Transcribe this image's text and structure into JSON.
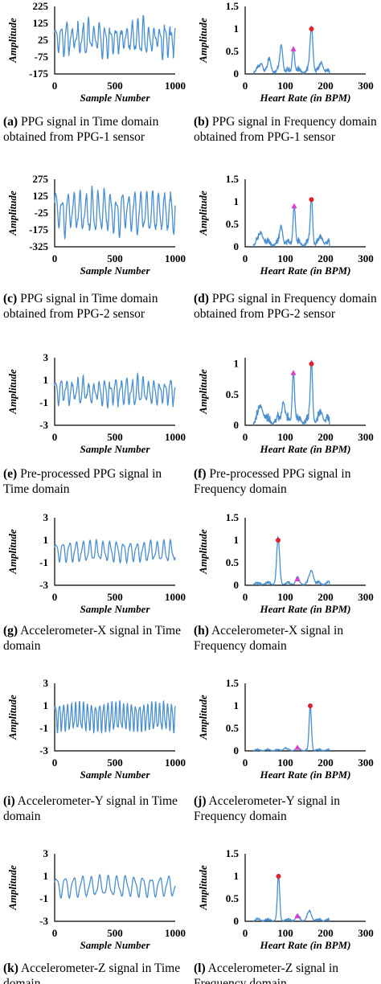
{
  "chart_data": [
    {
      "id": "a",
      "type": "line",
      "letter": "(a)",
      "caption": "PPG signal in Time domain obtained from PPG-1 sensor",
      "xlabel": "Sample Number",
      "ylabel": "Amplitude",
      "xlim": [
        0,
        1000
      ],
      "ylim": [
        -175,
        225
      ],
      "xticks": [
        0,
        500,
        1000
      ],
      "yticks": [
        225,
        125,
        25,
        -75,
        -175
      ],
      "yticklabels": [
        "225",
        "125",
        "25",
        "-75",
        "-175"
      ],
      "signal": {
        "mean": 35,
        "amplitude": 75,
        "periods": 22,
        "irregularity": 0.6,
        "seed": 1
      }
    },
    {
      "id": "b",
      "type": "line",
      "letter": "(b)",
      "caption": "PPG signal in Frequency domain obtained from PPG-1 sensor",
      "xlabel": "Heart Rate (in BPM)",
      "ylabel": "Amplitude",
      "xlim": [
        0,
        300
      ],
      "ylim": [
        0,
        1.5
      ],
      "xticks": [
        0,
        100,
        200,
        300
      ],
      "yticks": [
        1.5,
        1,
        0.5,
        0
      ],
      "yticklabels": [
        "1.5",
        "1",
        "0.5",
        "0"
      ],
      "spectrum": {
        "start": 20,
        "end": 210,
        "peaks": [
          [
            40,
            0.2,
            6
          ],
          [
            60,
            0.25,
            6
          ],
          [
            90,
            0.6,
            5
          ],
          [
            120,
            0.55,
            4
          ],
          [
            165,
            1.0,
            5
          ],
          [
            190,
            0.2,
            6
          ]
        ],
        "noise": 0.12,
        "seed": 2
      },
      "markers": [
        {
          "shape": "circle",
          "x": 165,
          "y": 1.0,
          "color": "#e0212b"
        },
        {
          "shape": "triangle",
          "x": 120,
          "y": 0.55,
          "color": "#e13bcf"
        }
      ]
    },
    {
      "id": "c",
      "type": "line",
      "letter": "(c)",
      "caption": "PPG signal in Time domain obtained from PPG-2 sensor",
      "xlabel": "Sample Number",
      "ylabel": "Amplitude",
      "xlim": [
        0,
        1000
      ],
      "ylim": [
        -325,
        275
      ],
      "xticks": [
        0,
        500,
        1000
      ],
      "yticks": [
        275,
        125,
        -25,
        -175,
        -325
      ],
      "yticklabels": [
        "275",
        "125",
        "-25",
        "-175",
        "-325"
      ],
      "signal": {
        "mean": -20,
        "amplitude": 150,
        "periods": 20,
        "irregularity": 0.35,
        "seed": 3
      }
    },
    {
      "id": "d",
      "type": "line",
      "letter": "(d)",
      "caption": "PPG signal in Frequency domain obtained from PPG-2 sensor",
      "xlabel": "Heart Rate (in BPM)",
      "ylabel": "Amplitude",
      "xlim": [
        0,
        300
      ],
      "ylim": [
        0,
        1.5
      ],
      "xticks": [
        0,
        100,
        200,
        300
      ],
      "yticks": [
        1.5,
        1,
        0.5,
        0
      ],
      "yticklabels": [
        "1.5",
        "1",
        "0.5",
        "0"
      ],
      "spectrum": {
        "start": 20,
        "end": 210,
        "peaks": [
          [
            40,
            0.25,
            8
          ],
          [
            90,
            0.4,
            5
          ],
          [
            122,
            0.9,
            4
          ],
          [
            165,
            1.05,
            4
          ],
          [
            190,
            0.15,
            6
          ]
        ],
        "noise": 0.15,
        "seed": 4
      },
      "markers": [
        {
          "shape": "circle",
          "x": 165,
          "y": 1.05,
          "color": "#e0212b"
        },
        {
          "shape": "triangle",
          "x": 122,
          "y": 0.9,
          "color": "#e13bcf"
        }
      ]
    },
    {
      "id": "e",
      "type": "line",
      "letter": "(e)",
      "caption": "Pre-processed PPG signal in Time domain",
      "xlabel": "Sample Number",
      "ylabel": "Amplitude",
      "xlim": [
        0,
        1000
      ],
      "ylim": [
        -3,
        3
      ],
      "xticks": [
        0,
        500,
        1000
      ],
      "yticks": [
        3,
        1,
        -1,
        -3
      ],
      "yticklabels": [
        "3",
        "1",
        "-1",
        "-3"
      ],
      "signal": {
        "mean": 0,
        "amplitude": 0.9,
        "periods": 22,
        "irregularity": 0.5,
        "seed": 5
      }
    },
    {
      "id": "f",
      "type": "line",
      "letter": "(f)",
      "caption": "Pre-processed PPG signal in Frequency domain",
      "xlabel": "Heart Rate (in BPM)",
      "ylabel": "Amplitude",
      "xlim": [
        0,
        300
      ],
      "ylim": [
        0,
        1.1
      ],
      "xticks": [
        0,
        100,
        200,
        300
      ],
      "yticks": [
        1,
        0.5,
        0
      ],
      "yticklabels": [
        "1",
        "0.5",
        "0"
      ],
      "spectrum": {
        "start": 20,
        "end": 210,
        "peaks": [
          [
            40,
            0.25,
            8
          ],
          [
            95,
            0.35,
            5
          ],
          [
            120,
            0.85,
            4
          ],
          [
            165,
            1.0,
            4
          ],
          [
            190,
            0.15,
            6
          ]
        ],
        "noise": 0.15,
        "seed": 6
      },
      "markers": [
        {
          "shape": "circle",
          "x": 165,
          "y": 1.0,
          "color": "#e0212b"
        },
        {
          "shape": "triangle",
          "x": 120,
          "y": 0.85,
          "color": "#e13bcf"
        }
      ]
    },
    {
      "id": "g",
      "type": "line",
      "letter": "(g)",
      "caption": "Accelerometer-X signal in Time domain",
      "xlabel": "Sample Number",
      "ylabel": "Amplitude",
      "xlim": [
        0,
        1000
      ],
      "ylim": [
        -3,
        3
      ],
      "xticks": [
        0,
        500,
        1000
      ],
      "yticks": [
        3,
        1,
        -1,
        -3
      ],
      "yticklabels": [
        "3",
        "1",
        "-1",
        "-3"
      ],
      "signal": {
        "mean": 0,
        "amplitude": 0.8,
        "periods": 18,
        "irregularity": 0.15,
        "seed": 7
      }
    },
    {
      "id": "h",
      "type": "line",
      "letter": "(h)",
      "caption": "Accelerometer-X signal in Frequency domain",
      "xlabel": "Heart Rate (in BPM)",
      "ylabel": "Amplitude",
      "xlim": [
        0,
        300
      ],
      "ylim": [
        0,
        1.5
      ],
      "xticks": [
        0,
        100,
        200,
        300
      ],
      "yticks": [
        1.5,
        1,
        0.5,
        0
      ],
      "yticklabels": [
        "1.5",
        "1",
        "0.5",
        "0"
      ],
      "spectrum": {
        "start": 20,
        "end": 210,
        "peaks": [
          [
            82,
            1.0,
            5
          ],
          [
            130,
            0.12,
            6
          ],
          [
            165,
            0.3,
            7
          ]
        ],
        "noise": 0.07,
        "seed": 8
      },
      "markers": [
        {
          "shape": "circle",
          "x": 82,
          "y": 1.0,
          "color": "#e0212b"
        },
        {
          "shape": "triangle",
          "x": 130,
          "y": 0.13,
          "color": "#e13bcf"
        }
      ]
    },
    {
      "id": "i",
      "type": "line",
      "letter": "(i)",
      "caption": "Accelerometer-Y signal in Time domain",
      "xlabel": "Sample Number",
      "ylabel": "Amplitude",
      "xlim": [
        0,
        1000
      ],
      "ylim": [
        -3,
        3
      ],
      "xticks": [
        0,
        500,
        1000
      ],
      "yticks": [
        3,
        1,
        -1,
        -3
      ],
      "yticklabels": [
        "3",
        "1",
        "-1",
        "-3"
      ],
      "signal": {
        "mean": 0,
        "amplitude": 1.1,
        "periods": 30,
        "irregularity": 0.1,
        "seed": 9
      }
    },
    {
      "id": "j",
      "type": "line",
      "letter": "(j)",
      "caption": "Accelerometer-Y signal in Frequency domain",
      "xlabel": "Heart Rate (in BPM)",
      "ylabel": "Amplitude",
      "xlim": [
        0,
        300
      ],
      "ylim": [
        0,
        1.5
      ],
      "xticks": [
        0,
        100,
        200,
        300
      ],
      "yticks": [
        1.5,
        1,
        0.5,
        0
      ],
      "yticklabels": [
        "1.5",
        "1",
        "0.5",
        "0"
      ],
      "spectrum": {
        "start": 20,
        "end": 210,
        "peaks": [
          [
            162,
            1.0,
            4
          ],
          [
            130,
            0.06,
            6
          ],
          [
            100,
            0.05,
            6
          ]
        ],
        "noise": 0.03,
        "seed": 10
      },
      "markers": [
        {
          "shape": "circle",
          "x": 162,
          "y": 1.0,
          "color": "#e0212b"
        },
        {
          "shape": "triangle",
          "x": 130,
          "y": 0.07,
          "color": "#e13bcf"
        }
      ]
    },
    {
      "id": "k",
      "type": "line",
      "letter": "(k)",
      "caption": "Accelerometer-Z signal in Time domain",
      "xlabel": "Sample Number",
      "ylabel": "Amplitude",
      "xlim": [
        0,
        1000
      ],
      "ylim": [
        -3,
        3
      ],
      "xticks": [
        0,
        500,
        1000
      ],
      "yticks": [
        3,
        1,
        -1,
        -3
      ],
      "yticklabels": [
        "3",
        "1",
        "-1",
        "-3"
      ],
      "signal": {
        "mean": 0.1,
        "amplitude": 0.8,
        "periods": 14,
        "irregularity": 0.1,
        "seed": 11
      }
    },
    {
      "id": "l",
      "type": "line",
      "letter": "(l)",
      "caption": "Accelerometer-Z signal in Frequency domain",
      "xlabel": "Heart Rate (in BPM)",
      "ylabel": "Amplitude",
      "xlim": [
        0,
        300
      ],
      "ylim": [
        0,
        1.5
      ],
      "xticks": [
        0,
        100,
        200,
        300
      ],
      "yticks": [
        1.5,
        1,
        0.5,
        0
      ],
      "yticklabels": [
        "1.5",
        "1",
        "0.5",
        "0"
      ],
      "spectrum": {
        "start": 20,
        "end": 210,
        "peaks": [
          [
            83,
            1.0,
            4
          ],
          [
            130,
            0.1,
            6
          ],
          [
            160,
            0.2,
            7
          ]
        ],
        "noise": 0.05,
        "seed": 12
      },
      "markers": [
        {
          "shape": "circle",
          "x": 83,
          "y": 1.0,
          "color": "#e0212b"
        },
        {
          "shape": "triangle",
          "x": 130,
          "y": 0.11,
          "color": "#e13bcf"
        }
      ]
    }
  ],
  "style": {
    "line_color": "#4a8fd0"
  }
}
